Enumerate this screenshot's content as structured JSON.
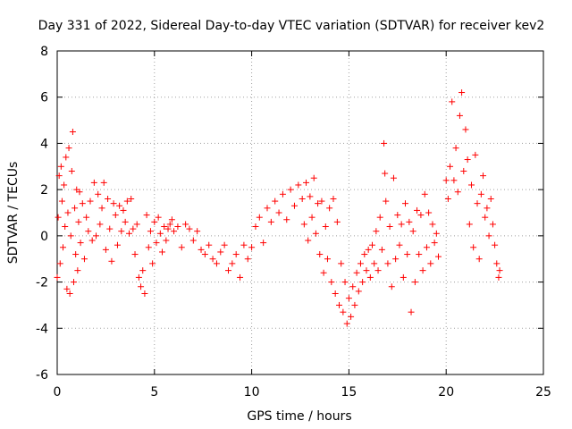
{
  "chart_data": {
    "type": "scatter",
    "title": "Day 331 of 2022, Sidereal Day-to-day VTEC variation (SDTVAR) for receiver kev2",
    "xlabel": "GPS time / hours",
    "ylabel": "SDTVAR / TECUs",
    "xlim": [
      0,
      25
    ],
    "ylim": [
      -6,
      8
    ],
    "xticks": [
      0,
      5,
      10,
      15,
      20,
      25
    ],
    "yticks": [
      -6,
      -4,
      -2,
      0,
      2,
      4,
      6,
      8
    ],
    "grid": true,
    "marker": "+",
    "marker_color": "#ff0000",
    "series": [
      {
        "name": "SDTVAR",
        "points": [
          [
            0.0,
            -1.8
          ],
          [
            0.05,
            0.8
          ],
          [
            0.1,
            2.6
          ],
          [
            0.15,
            -1.2
          ],
          [
            0.2,
            3.0
          ],
          [
            0.25,
            1.5
          ],
          [
            0.3,
            -0.5
          ],
          [
            0.35,
            2.2
          ],
          [
            0.4,
            0.4
          ],
          [
            0.45,
            3.4
          ],
          [
            0.5,
            -2.3
          ],
          [
            0.55,
            1.0
          ],
          [
            0.6,
            3.8
          ],
          [
            0.65,
            -2.5
          ],
          [
            0.7,
            0.0
          ],
          [
            0.75,
            2.8
          ],
          [
            0.8,
            4.5
          ],
          [
            0.85,
            -2.0
          ],
          [
            0.9,
            1.2
          ],
          [
            0.95,
            -0.8
          ],
          [
            1.0,
            2.0
          ],
          [
            1.05,
            -1.5
          ],
          [
            1.1,
            0.6
          ],
          [
            1.15,
            1.9
          ],
          [
            1.2,
            -0.3
          ],
          [
            1.3,
            1.4
          ],
          [
            1.4,
            -1.0
          ],
          [
            1.5,
            0.8
          ],
          [
            1.6,
            0.2
          ],
          [
            1.7,
            1.5
          ],
          [
            1.8,
            -0.2
          ],
          [
            1.9,
            2.3
          ],
          [
            2.0,
            0.0
          ],
          [
            2.1,
            1.8
          ],
          [
            2.2,
            0.5
          ],
          [
            2.3,
            1.2
          ],
          [
            2.4,
            2.3
          ],
          [
            2.5,
            -0.6
          ],
          [
            2.6,
            1.6
          ],
          [
            2.7,
            0.3
          ],
          [
            2.8,
            -1.1
          ],
          [
            2.9,
            1.4
          ],
          [
            3.0,
            0.9
          ],
          [
            3.1,
            -0.4
          ],
          [
            3.2,
            1.3
          ],
          [
            3.3,
            0.2
          ],
          [
            3.4,
            1.1
          ],
          [
            3.5,
            0.6
          ],
          [
            3.6,
            1.5
          ],
          [
            3.7,
            0.1
          ],
          [
            3.8,
            1.6
          ],
          [
            3.9,
            0.3
          ],
          [
            4.0,
            -0.8
          ],
          [
            4.1,
            0.5
          ],
          [
            4.2,
            -1.8
          ],
          [
            4.3,
            -2.2
          ],
          [
            4.4,
            -1.5
          ],
          [
            4.5,
            -2.5
          ],
          [
            4.6,
            0.9
          ],
          [
            4.7,
            -0.5
          ],
          [
            4.8,
            0.2
          ],
          [
            4.9,
            -1.2
          ],
          [
            5.0,
            0.6
          ],
          [
            5.1,
            -0.3
          ],
          [
            5.2,
            0.8
          ],
          [
            5.3,
            0.1
          ],
          [
            5.4,
            -0.7
          ],
          [
            5.5,
            0.4
          ],
          [
            5.6,
            -0.2
          ],
          [
            5.7,
            0.3
          ],
          [
            5.8,
            0.5
          ],
          [
            5.9,
            0.7
          ],
          [
            6.0,
            0.2
          ],
          [
            6.2,
            0.4
          ],
          [
            6.4,
            -0.5
          ],
          [
            6.6,
            0.5
          ],
          [
            6.8,
            0.3
          ],
          [
            7.0,
            -0.2
          ],
          [
            7.2,
            0.2
          ],
          [
            7.4,
            -0.6
          ],
          [
            7.6,
            -0.8
          ],
          [
            7.8,
            -0.4
          ],
          [
            8.0,
            -1.0
          ],
          [
            8.2,
            -1.2
          ],
          [
            8.4,
            -0.7
          ],
          [
            8.6,
            -0.4
          ],
          [
            8.8,
            -1.5
          ],
          [
            9.0,
            -1.2
          ],
          [
            9.2,
            -0.8
          ],
          [
            9.4,
            -1.8
          ],
          [
            9.6,
            -0.4
          ],
          [
            9.8,
            -1.0
          ],
          [
            10.0,
            -0.5
          ],
          [
            10.2,
            0.4
          ],
          [
            10.4,
            0.8
          ],
          [
            10.6,
            -0.3
          ],
          [
            10.8,
            1.2
          ],
          [
            11.0,
            0.6
          ],
          [
            11.2,
            1.5
          ],
          [
            11.4,
            1.0
          ],
          [
            11.6,
            1.8
          ],
          [
            11.8,
            0.7
          ],
          [
            12.0,
            2.0
          ],
          [
            12.2,
            1.3
          ],
          [
            12.4,
            2.2
          ],
          [
            12.6,
            1.6
          ],
          [
            12.7,
            0.5
          ],
          [
            12.8,
            2.3
          ],
          [
            12.9,
            -0.2
          ],
          [
            13.0,
            1.7
          ],
          [
            13.1,
            0.8
          ],
          [
            13.2,
            2.5
          ],
          [
            13.3,
            0.1
          ],
          [
            13.4,
            1.4
          ],
          [
            13.5,
            -0.8
          ],
          [
            13.6,
            1.5
          ],
          [
            13.7,
            -1.6
          ],
          [
            13.8,
            0.4
          ],
          [
            13.9,
            -1.0
          ],
          [
            14.0,
            1.2
          ],
          [
            14.1,
            -2.0
          ],
          [
            14.2,
            1.6
          ],
          [
            14.3,
            -2.5
          ],
          [
            14.4,
            0.6
          ],
          [
            14.5,
            -3.0
          ],
          [
            14.6,
            -1.2
          ],
          [
            14.7,
            -3.3
          ],
          [
            14.8,
            -2.0
          ],
          [
            14.9,
            -3.8
          ],
          [
            15.0,
            -2.7
          ],
          [
            15.1,
            -3.5
          ],
          [
            15.2,
            -2.2
          ],
          [
            15.3,
            -3.0
          ],
          [
            15.4,
            -1.6
          ],
          [
            15.5,
            -2.4
          ],
          [
            15.6,
            -1.2
          ],
          [
            15.7,
            -2.0
          ],
          [
            15.8,
            -0.8
          ],
          [
            15.9,
            -1.5
          ],
          [
            16.0,
            -0.6
          ],
          [
            16.1,
            -1.8
          ],
          [
            16.2,
            -0.4
          ],
          [
            16.3,
            -1.2
          ],
          [
            16.4,
            0.2
          ],
          [
            16.5,
            -1.5
          ],
          [
            16.6,
            0.8
          ],
          [
            16.7,
            -0.6
          ],
          [
            16.8,
            4.0
          ],
          [
            16.85,
            2.7
          ],
          [
            16.9,
            1.5
          ],
          [
            17.0,
            -1.2
          ],
          [
            17.1,
            0.4
          ],
          [
            17.2,
            -2.2
          ],
          [
            17.3,
            2.5
          ],
          [
            17.4,
            -1.0
          ],
          [
            17.5,
            0.9
          ],
          [
            17.6,
            -0.4
          ],
          [
            17.7,
            0.5
          ],
          [
            17.8,
            -1.8
          ],
          [
            17.9,
            1.4
          ],
          [
            18.0,
            -0.8
          ],
          [
            18.1,
            0.6
          ],
          [
            18.2,
            -3.3
          ],
          [
            18.3,
            0.2
          ],
          [
            18.4,
            -2.0
          ],
          [
            18.5,
            1.1
          ],
          [
            18.6,
            -0.8
          ],
          [
            18.7,
            0.9
          ],
          [
            18.8,
            -1.5
          ],
          [
            18.9,
            1.8
          ],
          [
            19.0,
            -0.5
          ],
          [
            19.1,
            1.0
          ],
          [
            19.2,
            -1.2
          ],
          [
            19.3,
            0.5
          ],
          [
            19.4,
            -0.3
          ],
          [
            19.5,
            0.1
          ],
          [
            19.6,
            -0.9
          ],
          [
            20.0,
            2.4
          ],
          [
            20.1,
            1.6
          ],
          [
            20.2,
            3.0
          ],
          [
            20.3,
            5.8
          ],
          [
            20.4,
            2.4
          ],
          [
            20.5,
            3.8
          ],
          [
            20.6,
            1.9
          ],
          [
            20.7,
            5.2
          ],
          [
            20.8,
            6.2
          ],
          [
            20.9,
            2.8
          ],
          [
            21.0,
            4.6
          ],
          [
            21.1,
            3.3
          ],
          [
            21.2,
            0.5
          ],
          [
            21.3,
            2.2
          ],
          [
            21.4,
            -0.5
          ],
          [
            21.5,
            3.5
          ],
          [
            21.6,
            1.4
          ],
          [
            21.7,
            -1.0
          ],
          [
            21.8,
            1.8
          ],
          [
            21.9,
            2.6
          ],
          [
            22.0,
            0.8
          ],
          [
            22.1,
            1.2
          ],
          [
            22.2,
            0.0
          ],
          [
            22.3,
            1.6
          ],
          [
            22.4,
            0.5
          ],
          [
            22.5,
            -0.4
          ],
          [
            22.6,
            -1.2
          ],
          [
            22.7,
            -1.8
          ],
          [
            22.75,
            -1.5
          ]
        ]
      }
    ]
  }
}
